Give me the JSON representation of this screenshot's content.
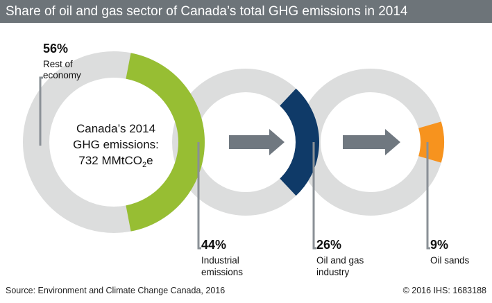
{
  "header": {
    "title": "Share of oil and gas sector of Canada’s total GHG emissions in 2014"
  },
  "center_label": {
    "line1": "Canada’s 2014",
    "line2": "GHG emissions:",
    "line3_prefix": "732 MMtCO",
    "line3_sub": "2",
    "line3_suffix": "e"
  },
  "colors": {
    "ring_bg": "#dcdddd",
    "industrial": "#97be33",
    "oil_gas": "#0f3a68",
    "oil_sands": "#f7931e",
    "arrow": "#707880",
    "leader": "#8a9096"
  },
  "chart_data": {
    "type": "donut",
    "rings": [
      {
        "pct_label": "56%",
        "label_lines": [
          "Rest of",
          "economy"
        ],
        "value": 56
      },
      {
        "pct_label": "44%",
        "label_lines": [
          "Industrial",
          "emissions"
        ],
        "value": 44
      },
      {
        "pct_label": "26%",
        "label_lines": [
          "Oil and gas",
          "industry"
        ],
        "value": 26
      },
      {
        "pct_label": "9%",
        "label_lines": [
          "Oil sands"
        ],
        "value": 9
      }
    ]
  },
  "footer": {
    "source": "Source: Environment and Climate Change Canada, 2016",
    "copyright": "© 2016 IHS: 1683188"
  }
}
